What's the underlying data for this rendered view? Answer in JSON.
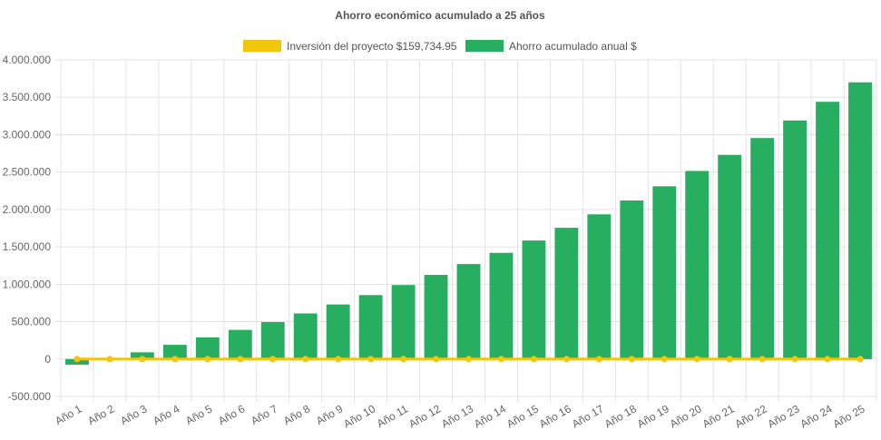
{
  "chart_data": {
    "type": "bar",
    "title": "Ahorro económico acumulado a 25 años",
    "categories": [
      "Año 1",
      "Año 2",
      "Año 3",
      "Año 4",
      "Año 5",
      "Año 6",
      "Año 7",
      "Año 8",
      "Año 9",
      "Año 10",
      "Año 11",
      "Año 12",
      "Año 13",
      "Año 14",
      "Año 15",
      "Año 16",
      "Año 17",
      "Año 18",
      "Año 19",
      "Año 20",
      "Año 21",
      "Año 22",
      "Año 23",
      "Año 24",
      "Año 25"
    ],
    "series": [
      {
        "name": "Inversión del proyecto $159,734.95",
        "kind": "line",
        "color": "#f1c40f",
        "values": [
          0,
          0,
          0,
          0,
          0,
          0,
          0,
          0,
          0,
          0,
          0,
          0,
          0,
          0,
          0,
          0,
          0,
          0,
          0,
          0,
          0,
          0,
          0,
          0,
          0
        ]
      },
      {
        "name": "Ahorro acumulado anual $",
        "kind": "bar",
        "color": "#27ae60",
        "values": [
          -75000,
          0,
          90000,
          190000,
          290000,
          390000,
          495000,
          610000,
          730000,
          855000,
          990000,
          1125000,
          1270000,
          1420000,
          1585000,
          1755000,
          1935000,
          2120000,
          2310000,
          2515000,
          2730000,
          2955000,
          3190000,
          3440000,
          3700000
        ]
      }
    ],
    "ylim": [
      -500000,
      4000000
    ],
    "yticks": [
      -500000,
      0,
      500000,
      1000000,
      1500000,
      2000000,
      2500000,
      3000000,
      3500000,
      4000000
    ],
    "ytick_labels": [
      "-500.000",
      "0",
      "500.000",
      "1.000.000",
      "1.500.000",
      "2.000.000",
      "2.500.000",
      "3.000.000",
      "3.500.000",
      "4.000.000"
    ],
    "grid": true,
    "legend_position": "top"
  }
}
